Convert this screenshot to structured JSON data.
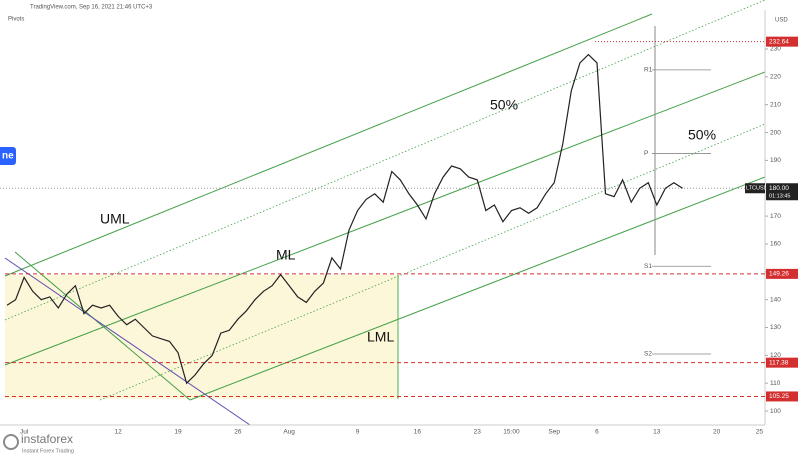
{
  "chart_data": {
    "type": "line",
    "header": "TradingView.com, Sep 16, 2021 21:46 UTC+3",
    "indicator": "Pivots",
    "currency": "USD",
    "symbol": "LTCUSD",
    "countdown": "01:13:45",
    "side_tag": "ne",
    "annotations": [
      "UML",
      "ML",
      "LML",
      "50%",
      "50%"
    ],
    "logo": {
      "name": "instaforex",
      "tagline": "Instant Forex Trading"
    },
    "color": "#222222",
    "categories": [
      null,
      null,
      "Jul",
      null,
      null,
      null,
      null,
      null,
      null,
      null,
      null,
      null,
      null,
      "12",
      null,
      null,
      null,
      null,
      null,
      null,
      "19",
      null,
      null,
      null,
      null,
      null,
      null,
      "26",
      null,
      null,
      null,
      null,
      null,
      "Aug",
      null,
      null,
      null,
      null,
      null,
      null,
      null,
      "9",
      null,
      null,
      null,
      null,
      null,
      null,
      "16",
      null,
      null,
      null,
      null,
      null,
      null,
      "23",
      null,
      null,
      null,
      "15:00",
      null,
      null,
      null,
      null,
      "Sep",
      null,
      null,
      null,
      null,
      "6",
      null,
      null,
      null,
      null,
      null,
      null,
      "13",
      null,
      null,
      null,
      null,
      null,
      null,
      "20",
      null,
      null,
      null,
      null,
      "25"
    ],
    "values": [
      138,
      140,
      148,
      143,
      140,
      141,
      137,
      142,
      145,
      135,
      138,
      137,
      138,
      134,
      131,
      133,
      130,
      127,
      126,
      125,
      121,
      110,
      113,
      117,
      120,
      128,
      129,
      133,
      136,
      140,
      143,
      145,
      149,
      145,
      141,
      139,
      143,
      146,
      155,
      151,
      165,
      172,
      176,
      178,
      175,
      186,
      183,
      178,
      174,
      169,
      178,
      184,
      188,
      187,
      184,
      183,
      172,
      174,
      168,
      172,
      173,
      171,
      173,
      178,
      182,
      196,
      215,
      225,
      228,
      225,
      178,
      177,
      183,
      175,
      180,
      182,
      174,
      180,
      182,
      180,
      null,
      null,
      null,
      null,
      null,
      null,
      null,
      null,
      null
    ],
    "ylim": [
      95,
      244
    ],
    "yticks": [
      100,
      110,
      120,
      130,
      140,
      150,
      160,
      170,
      180,
      190,
      200,
      210,
      220,
      230
    ],
    "price_levels": [
      232.64,
      149.26,
      117.38,
      105.25
    ],
    "level_color": "#d32f2f",
    "last_price": {
      "value": 180,
      "label": "180.00"
    },
    "pivots": [
      {
        "label": "R1",
        "value": 222.5
      },
      {
        "label": "P",
        "value": 192.5
      },
      {
        "label": "S1",
        "value": 152
      },
      {
        "label": "S2",
        "value": 120.5
      }
    ]
  }
}
